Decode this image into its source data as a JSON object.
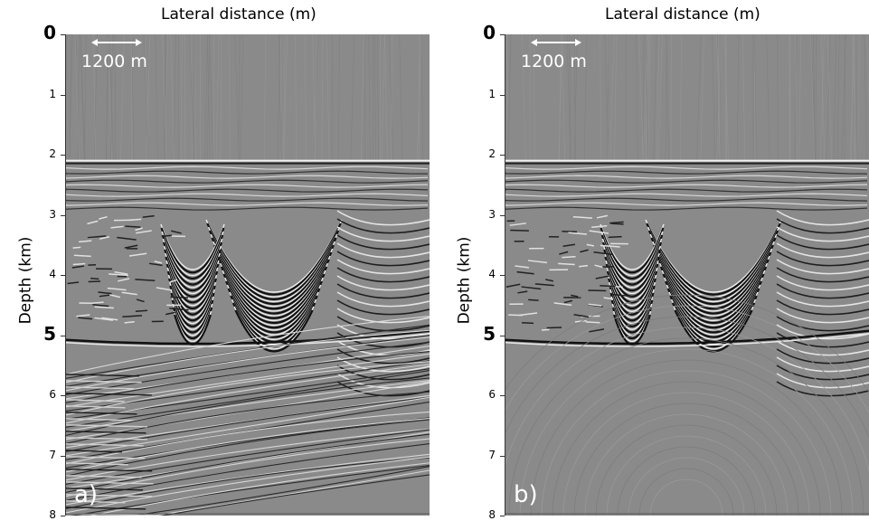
{
  "chart_data": [
    {
      "type": "heatmap",
      "panel_label": "a)",
      "xlabel": "Lateral distance (m)",
      "ylabel": "Depth (km)",
      "ylim": [
        0,
        8
      ],
      "y_ticks": [
        0,
        1,
        2,
        3,
        4,
        5,
        6,
        7,
        8
      ],
      "y_ticks_emphasized": [
        0,
        5
      ],
      "scale_bar_label": "1200 m",
      "colormap": "grayscale",
      "water_bottom_depth_km": 2.1,
      "salt_base_depth_km": 5.2
    },
    {
      "type": "heatmap",
      "panel_label": "b)",
      "xlabel": "Lateral distance (m)",
      "ylabel": "Depth (km)",
      "ylim": [
        0,
        8
      ],
      "y_ticks": [
        0,
        1,
        2,
        3,
        4,
        5,
        6,
        7,
        8
      ],
      "y_ticks_emphasized": [
        0,
        5
      ],
      "scale_bar_label": "1200 m",
      "colormap": "grayscale",
      "water_bottom_depth_km": 2.1,
      "salt_base_depth_km": 5.2
    }
  ],
  "colors": {
    "background": "#8a8a8a",
    "dark_event": "#1a1a1a",
    "bright_event": "#ffffff",
    "annotation": "#ffffff"
  }
}
